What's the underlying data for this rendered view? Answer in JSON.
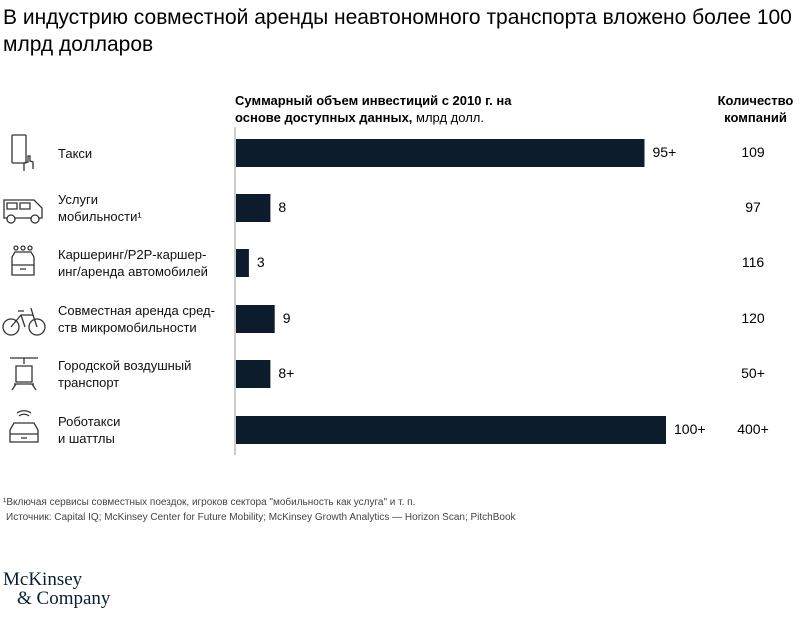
{
  "title": "В индустрию совместной аренды неавтономного транспорта вложено более 100 млрд долларов",
  "header_investment_bold": "Суммарный объем инвестиций с 2010 г. на основе доступных данных,",
  "header_investment_unit": "млрд долл.",
  "header_companies": "Количество компаний",
  "chart_data": {
    "type": "bar",
    "orientation": "horizontal",
    "categories": [
      "Такси",
      "Услуги мобильности¹",
      "Каршеринг/P2P-каршеринг/аренда автомобилей",
      "Совместная аренда средств микромобильности",
      "Городской воздушный транспорт",
      "Роботакси и шаттлы"
    ],
    "values": [
      95,
      8,
      3,
      9,
      8,
      100
    ],
    "data_labels": [
      "95+",
      "8",
      "3",
      "9",
      "8+",
      "100+"
    ],
    "companies": [
      "109",
      "97",
      "116",
      "120",
      "50+",
      "400+"
    ],
    "icons": [
      "smartphone-tap-icon",
      "van-icon",
      "carsharing-icon",
      "bicycle-icon",
      "air-taxi-icon",
      "robotaxi-icon"
    ],
    "bar_color": "#0c1c2c",
    "xlim": [
      0,
      100
    ]
  },
  "footnote": "¹Включая сервисы совместных поездок, игроков сектора \"мобильность как услуга\" и т. п.",
  "source": "Источник: Capital IQ; McKinsey Center for Future Mobility; McKinsey Growth Analytics — Horizon Scan; PitchBook",
  "logo": "McKinsey & Company"
}
